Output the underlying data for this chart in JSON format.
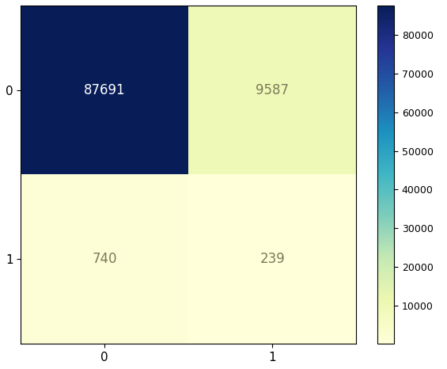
{
  "matrix": [
    [
      87691,
      9587
    ],
    [
      740,
      239
    ]
  ],
  "row_labels": [
    "0",
    "1"
  ],
  "col_labels": [
    "0",
    "1"
  ],
  "colormap": "YlGnBu",
  "text_colors": {
    "light": "#7a7a5a",
    "dark": "white"
  },
  "colorbar_ticks": [
    10000,
    20000,
    30000,
    40000,
    50000,
    60000,
    70000,
    80000
  ],
  "vmin": 0,
  "vmax": 87691,
  "fontsize_annotations": 12,
  "figsize": [
    5.65,
    4.66
  ],
  "dpi": 100
}
